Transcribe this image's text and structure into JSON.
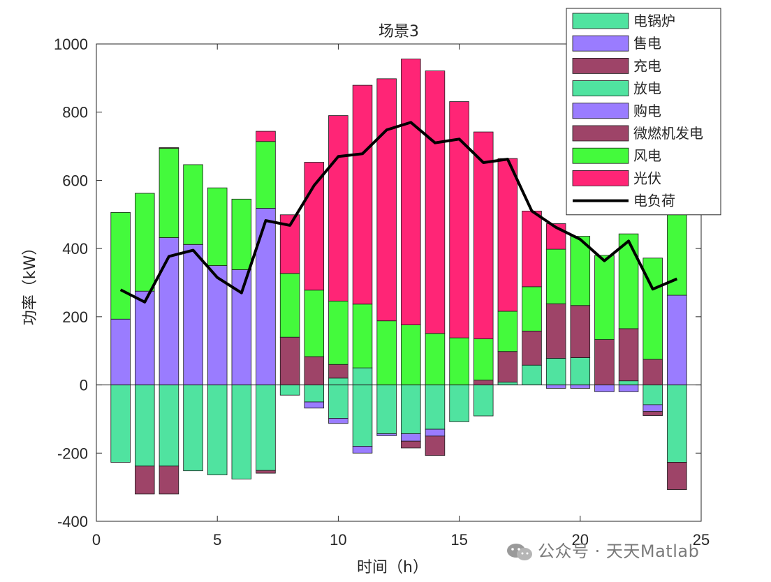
{
  "chart_data": {
    "type": "bar",
    "title": "场景3",
    "xlabel": "时间（h）",
    "ylabel": "功率（kW）",
    "xlim": [
      0,
      25
    ],
    "ylim": [
      -400,
      1000
    ],
    "xticks": [
      0,
      5,
      10,
      15,
      20,
      25
    ],
    "yticks": [
      -400,
      -200,
      0,
      200,
      400,
      600,
      800,
      1000
    ],
    "x": [
      1,
      2,
      3,
      4,
      5,
      6,
      7,
      8,
      9,
      10,
      11,
      12,
      13,
      14,
      15,
      16,
      17,
      18,
      19,
      20,
      21,
      22,
      23,
      24
    ],
    "stacked": true,
    "legend_position": "top-right",
    "series": [
      {
        "name": "电锅炉",
        "color": "#50E3A0",
        "values": [
          -227,
          -238,
          -238,
          -252,
          -264,
          -276,
          -251,
          -30,
          -50,
          -98,
          -180,
          -143,
          -143,
          -130,
          -108,
          -91,
          0,
          0,
          0,
          0,
          0,
          0,
          -58,
          -227
        ]
      },
      {
        "name": "售电",
        "color": "#9A7CFF",
        "values": [
          0,
          0,
          0,
          0,
          0,
          0,
          0,
          0,
          -18,
          -15,
          -20,
          -6,
          -22,
          -20,
          0,
          0,
          0,
          0,
          -10,
          -10,
          -20,
          -20,
          -20,
          0
        ]
      },
      {
        "name": "充电",
        "color": "#9E4468",
        "values": [
          0,
          -82,
          -82,
          0,
          0,
          0,
          -8,
          0,
          0,
          0,
          0,
          0,
          -20,
          -57,
          0,
          0,
          0,
          0,
          0,
          0,
          0,
          0,
          -12,
          -80
        ]
      },
      {
        "name": "放电",
        "color": "#50E3A0",
        "values": [
          0,
          0,
          0,
          0,
          0,
          0,
          0,
          0,
          0,
          20,
          50,
          0,
          0,
          0,
          0,
          0,
          8,
          58,
          78,
          80,
          0,
          12,
          0,
          0
        ]
      },
      {
        "name": "购电",
        "color": "#9A7CFF",
        "values": [
          193,
          275,
          432,
          412,
          350,
          338,
          518,
          0,
          0,
          0,
          0,
          0,
          0,
          0,
          0,
          0,
          0,
          0,
          0,
          0,
          0,
          0,
          0,
          263
        ]
      },
      {
        "name": "微燃机发电",
        "color": "#9E4468",
        "values": [
          0,
          0,
          0,
          0,
          0,
          0,
          0,
          140,
          83,
          40,
          0,
          0,
          0,
          0,
          0,
          14,
          90,
          100,
          160,
          153,
          133,
          153,
          75,
          0
        ]
      },
      {
        "name": "风电",
        "color": "#44FA3C",
        "values": [
          313,
          287,
          262,
          234,
          228,
          207,
          196,
          187,
          195,
          186,
          187,
          188,
          176,
          151,
          138,
          121,
          118,
          130,
          160,
          203,
          247,
          278,
          297,
          344
        ]
      },
      {
        "name": "光伏",
        "color": "#FF2576",
        "values": [
          0,
          0,
          2,
          0,
          0,
          0,
          30,
          172,
          375,
          544,
          642,
          710,
          780,
          770,
          693,
          607,
          448,
          222,
          75,
          0,
          0,
          0,
          0,
          0
        ]
      }
    ],
    "line": {
      "name": "电负荷",
      "color": "#000000",
      "values": [
        279,
        243,
        377,
        395,
        315,
        270,
        482,
        468,
        585,
        670,
        678,
        748,
        770,
        710,
        721,
        652,
        662,
        510,
        462,
        427,
        364,
        422,
        281,
        311
      ]
    }
  },
  "watermark": {
    "text": "公众号 · 天天Matlab",
    "icon": "wechat-icon"
  }
}
